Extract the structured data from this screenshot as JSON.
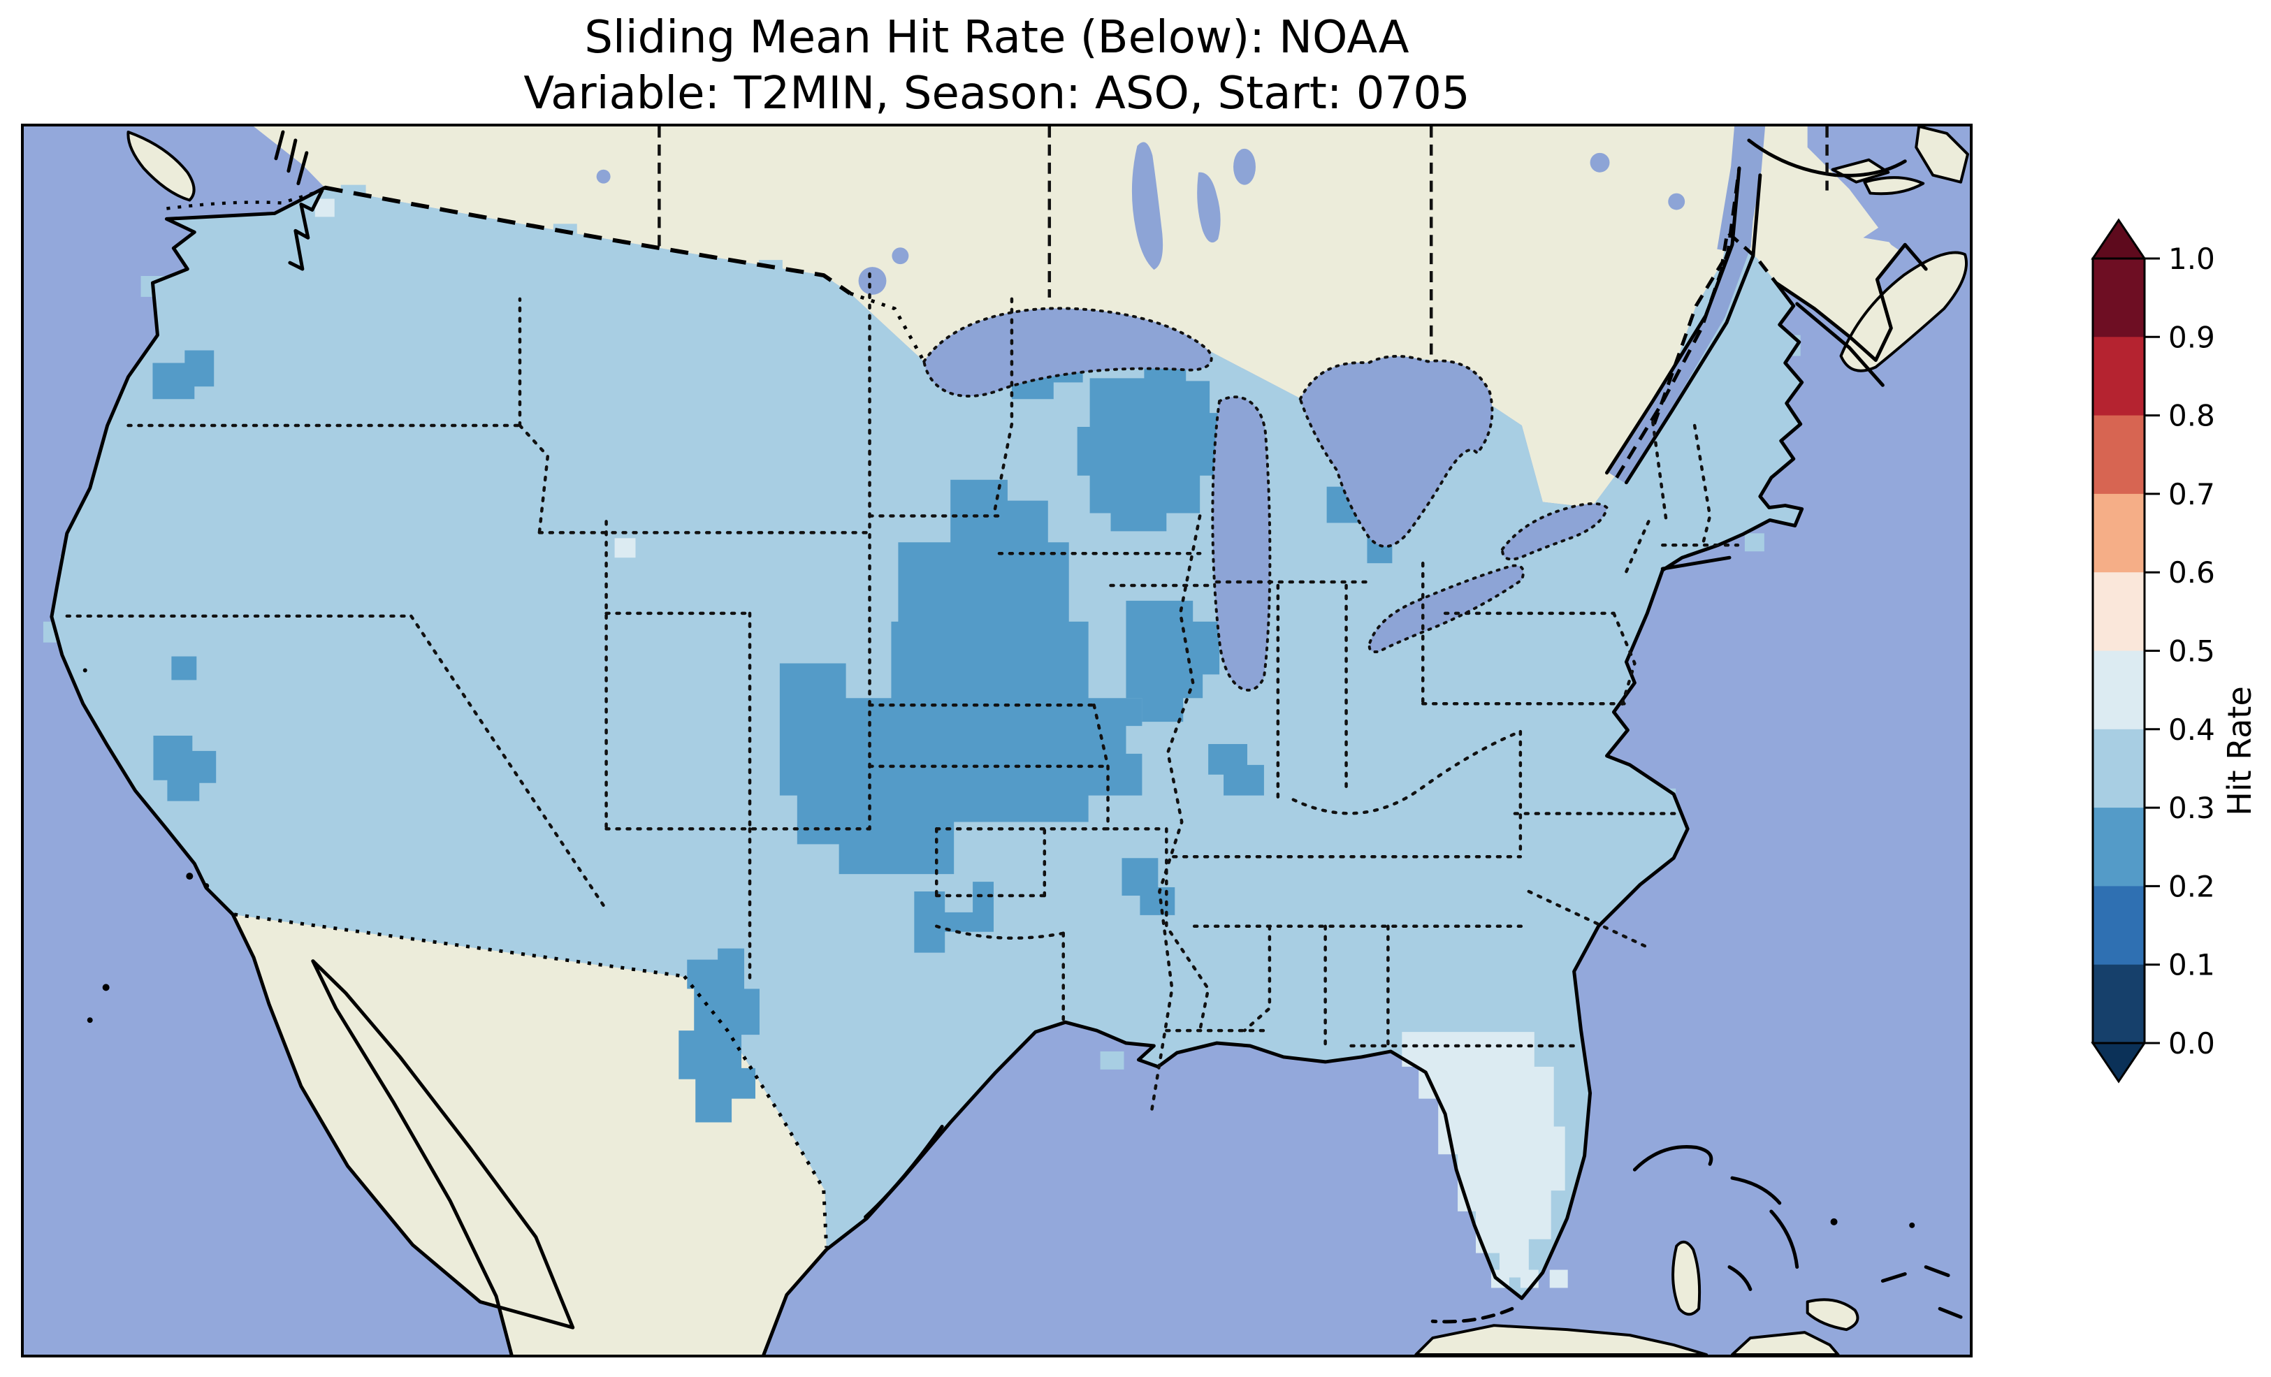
{
  "title": {
    "line1": "Sliding Mean Hit Rate (Below): NOAA",
    "line2": "Variable: T2MIN, Season: ASO, Start: 0705"
  },
  "colorbar": {
    "label": "Hit Rate",
    "ticks_top_down": [
      "1.0",
      "0.9",
      "0.8",
      "0.7",
      "0.6",
      "0.5",
      "0.4",
      "0.3",
      "0.2",
      "0.1",
      "0.0"
    ],
    "segments_top_down": [
      "#6e0e23",
      "#b52330",
      "#d76552",
      "#f5ae87",
      "#fae7da",
      "#dcebf2",
      "#a8cee3",
      "#549bc8",
      "#2f70b2",
      "#16406b"
    ],
    "over_arrow_color": "#5e0a1d",
    "under_arrow_color": "#0b3158"
  },
  "map": {
    "ocean_color": "#93a8db",
    "lake_color": "#8da4d6",
    "no_data_land_color": "#ececda",
    "coastline_color": "#000000",
    "bin_colors": {
      "rate_30_40": "#a8cee3",
      "rate_20_30": "#549bc8",
      "rate_40_50": "#dcebf2"
    }
  }
}
